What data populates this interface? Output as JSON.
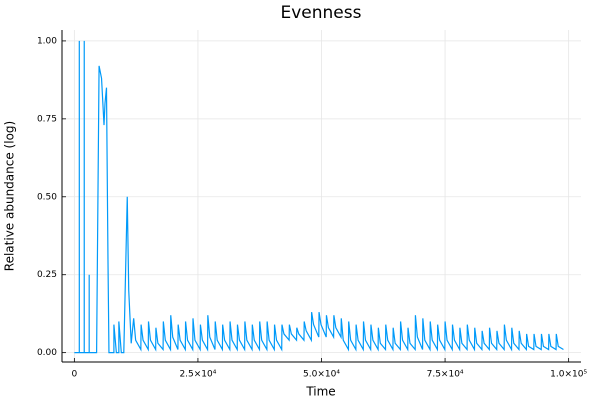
{
  "chart_data": {
    "type": "line",
    "title": "Evenness",
    "x_label": "Time",
    "y_label": "Relative abundance (log)",
    "xlim": [
      -2500,
      102500
    ],
    "ylim": [
      -0.03,
      1.035
    ],
    "xticks": [
      0,
      {
        "value": 25000,
        "label": "2.5×10⁴"
      },
      {
        "value": 50000,
        "label": "5.0×10⁴"
      },
      {
        "value": 75000,
        "label": "7.5×10⁴"
      },
      {
        "value": 100000,
        "label": "1.0×10⁵"
      }
    ],
    "yticks": [
      {
        "value": 0,
        "label": "0.00"
      },
      {
        "value": 0.25,
        "label": "0.25"
      },
      {
        "value": 0.5,
        "label": "0.50"
      },
      {
        "value": 0.75,
        "label": "0.75"
      },
      {
        "value": 1,
        "label": "1.00"
      }
    ],
    "grid": true,
    "x": [
      0,
      1000,
      1000,
      1000,
      2000,
      2000,
      2000,
      3000,
      3000,
      3000,
      4500,
      5000,
      5500,
      6000,
      6200,
      6500,
      6800,
      7000,
      8000,
      8000,
      8500,
      9000,
      9000,
      9500,
      10000,
      10700,
      11000,
      11500,
      12000,
      12400,
      13450,
      13500,
      13900,
      14950,
      15000,
      15400,
      16450,
      16500,
      16900,
      17950,
      18000,
      18400,
      19450,
      19500,
      19900,
      20950,
      21000,
      21400,
      22450,
      22500,
      22900,
      23950,
      24000,
      24400,
      25450,
      25500,
      25900,
      26950,
      27000,
      27400,
      28450,
      28500,
      28900,
      29950,
      30000,
      30400,
      31450,
      31500,
      31900,
      32950,
      33000,
      33400,
      34450,
      34500,
      34900,
      35950,
      36000,
      36400,
      37450,
      37500,
      37900,
      38950,
      39000,
      39400,
      40450,
      40500,
      40900,
      41950,
      42000,
      42400,
      43450,
      43500,
      43900,
      44950,
      45000,
      45400,
      46450,
      46500,
      46900,
      47950,
      48000,
      48400,
      49450,
      49500,
      49900,
      50950,
      51000,
      51400,
      52450,
      52500,
      52900,
      53950,
      54000,
      54400,
      55450,
      55500,
      55900,
      56950,
      57000,
      57400,
      58450,
      58500,
      58900,
      59950,
      60000,
      60400,
      61450,
      61500,
      61900,
      62950,
      63000,
      63400,
      64450,
      64500,
      64900,
      65950,
      66000,
      66400,
      67450,
      67500,
      67900,
      68950,
      69000,
      69400,
      70450,
      70500,
      70900,
      71950,
      72000,
      72400,
      73450,
      73500,
      73900,
      74950,
      75000,
      75400,
      76450,
      76500,
      76900,
      77950,
      78000,
      78400,
      79450,
      79500,
      79900,
      80950,
      81000,
      81400,
      82450,
      82500,
      82900,
      83950,
      84000,
      84400,
      85450,
      85500,
      85900,
      86950,
      87000,
      87400,
      88450,
      88500,
      88900,
      89950,
      90000,
      90400,
      91450,
      91500,
      91900,
      92950,
      93000,
      93400,
      94450,
      94500,
      94900,
      95950,
      96000,
      96400,
      97450,
      97500,
      97900,
      98950
    ],
    "series": [
      {
        "color": "#009af9",
        "values": [
          0,
          0,
          1,
          0,
          0,
          1,
          0,
          0,
          0.25,
          0,
          0,
          0.92,
          0.88,
          0.73,
          0.8,
          0.85,
          0.3,
          0,
          0,
          0.09,
          0,
          0,
          0.1,
          0,
          0,
          0.5,
          0.2,
          0.03,
          0.11,
          0.04,
          0.01,
          0.09,
          0.04,
          0.01,
          0.1,
          0.04,
          0.01,
          0.08,
          0.03,
          0.01,
          0.1,
          0.04,
          0.01,
          0.12,
          0.05,
          0.01,
          0.09,
          0.04,
          0.01,
          0.1,
          0.04,
          0.01,
          0.11,
          0.04,
          0.01,
          0.09,
          0.04,
          0.01,
          0.12,
          0.05,
          0.01,
          0.1,
          0.04,
          0.01,
          0.09,
          0.04,
          0.01,
          0.1,
          0.04,
          0.01,
          0.09,
          0.04,
          0.01,
          0.1,
          0.04,
          0.01,
          0.09,
          0.04,
          0.01,
          0.1,
          0.04,
          0.01,
          0.1,
          0.04,
          0.01,
          0.09,
          0.04,
          0.01,
          0.09,
          0.06,
          0.04,
          0.09,
          0.06,
          0.04,
          0.08,
          0.06,
          0.04,
          0.1,
          0.07,
          0.04,
          0.13,
          0.09,
          0.05,
          0.13,
          0.09,
          0.05,
          0.12,
          0.08,
          0.05,
          0.12,
          0.08,
          0.05,
          0.11,
          0.04,
          0.01,
          0.1,
          0.04,
          0.01,
          0.09,
          0.04,
          0.01,
          0.1,
          0.04,
          0.01,
          0.09,
          0.04,
          0.01,
          0.08,
          0.03,
          0.01,
          0.09,
          0.04,
          0.01,
          0.08,
          0.03,
          0.01,
          0.1,
          0.04,
          0.01,
          0.08,
          0.03,
          0.01,
          0.12,
          0.05,
          0.01,
          0.11,
          0.04,
          0.01,
          0.1,
          0.04,
          0.01,
          0.09,
          0.04,
          0.01,
          0.1,
          0.04,
          0.01,
          0.09,
          0.04,
          0.01,
          0.08,
          0.03,
          0.01,
          0.09,
          0.04,
          0.01,
          0.08,
          0.03,
          0.01,
          0.07,
          0.03,
          0.01,
          0.08,
          0.03,
          0.01,
          0.07,
          0.03,
          0.01,
          0.09,
          0.04,
          0.01,
          0.08,
          0.03,
          0.01,
          0.07,
          0.03,
          0.01,
          0.06,
          0.02,
          0.01,
          0.06,
          0.02,
          0.01,
          0.06,
          0.02,
          0.01,
          0.06,
          0.02,
          0.01,
          0.06,
          0.02,
          0.01
        ]
      }
    ]
  }
}
